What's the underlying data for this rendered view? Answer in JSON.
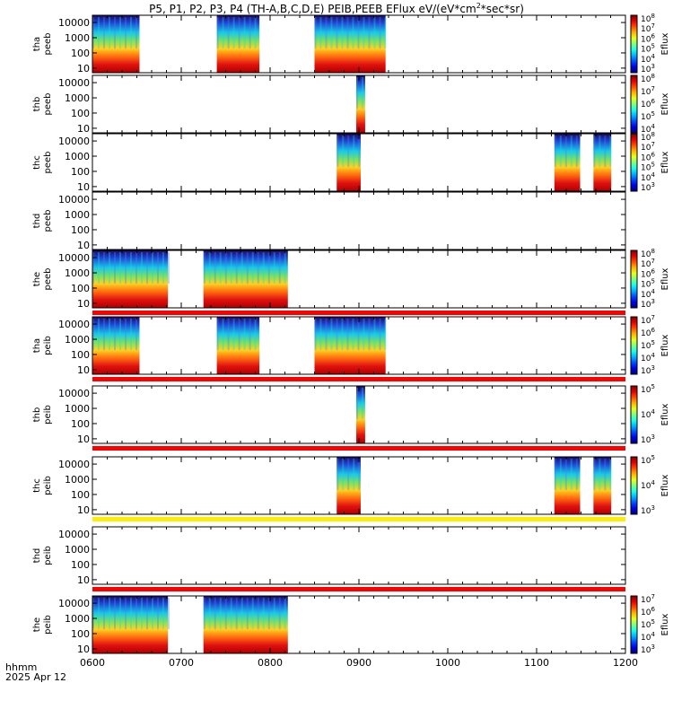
{
  "title_prefix": "P5, P1, P2, P3, P4 (TH-A,B,C,D,E) PEIB,PEEB EFlux eV/(eV*cm",
  "title_sup": "2",
  "title_suffix": "*sec*sr)",
  "footer": {
    "label": "hhmm",
    "date": "2025 Apr 12"
  },
  "chart_data": {
    "type": "heatmap",
    "x_ticks": [
      "0600",
      "0700",
      "0800",
      "0900",
      "1000",
      "1100",
      "1200"
    ],
    "x_range_hhmm": [
      "06:00",
      "12:00"
    ],
    "y_tick_labels": [
      "10",
      "100",
      "1000",
      "10000"
    ],
    "y_scale": "log",
    "colorbar_label": "Eflux",
    "panels": [
      {
        "ylabel1": "tha",
        "ylabel2": "peeb",
        "data_intervals": [
          [
            "06:00",
            "06:53"
          ],
          [
            "07:40",
            "07:88"
          ],
          [
            "08:50",
            "09:30"
          ]
        ],
        "colorbar_ticks": [
          "10^3",
          "10^4",
          "10^5",
          "10^6",
          "10^7",
          "10^8"
        ],
        "status_bar": null
      },
      {
        "ylabel1": "thb",
        "ylabel2": "peeb",
        "data_intervals": [
          [
            "08:97",
            "09:07"
          ]
        ],
        "colorbar_ticks": [
          "10^4",
          "10^5",
          "10^6",
          "10^7",
          "10^8"
        ],
        "status_bar": null
      },
      {
        "ylabel1": "thc",
        "ylabel2": "peeb",
        "data_intervals": [
          [
            "08:75",
            "09:02"
          ],
          [
            "11:20",
            "11:49"
          ],
          [
            "11:64",
            "11:84"
          ]
        ],
        "colorbar_ticks": [
          "10^3",
          "10^4",
          "10^5",
          "10^6",
          "10^7",
          "10^8"
        ],
        "status_bar": null
      },
      {
        "ylabel1": "thd",
        "ylabel2": "peeb",
        "data_intervals": [],
        "colorbar_ticks": [],
        "status_bar": null
      },
      {
        "ylabel1": "the",
        "ylabel2": "peeb",
        "data_intervals": [
          [
            "06:00",
            "06:85"
          ],
          [
            "07:25",
            "08:20"
          ]
        ],
        "colorbar_ticks": [
          "10^3",
          "10^4",
          "10^5",
          "10^6",
          "10^7",
          "10^8"
        ],
        "status_bar": "red"
      },
      {
        "ylabel1": "tha",
        "ylabel2": "peib",
        "data_intervals": [
          [
            "06:00",
            "06:53"
          ],
          [
            "07:40",
            "07:88"
          ],
          [
            "08:50",
            "09:30"
          ]
        ],
        "colorbar_ticks": [
          "10^3",
          "10^4",
          "10^5",
          "10^6",
          "10^7"
        ],
        "status_bar": "red"
      },
      {
        "ylabel1": "thb",
        "ylabel2": "peib",
        "data_intervals": [
          [
            "08:97",
            "09:07"
          ]
        ],
        "colorbar_ticks": [
          "10^3",
          "10^4",
          "10^5"
        ],
        "status_bar": "red"
      },
      {
        "ylabel1": "thc",
        "ylabel2": "peib",
        "data_intervals": [
          [
            "08:75",
            "09:02"
          ],
          [
            "11:20",
            "11:49"
          ],
          [
            "11:64",
            "11:84"
          ]
        ],
        "colorbar_ticks": [
          "10^3",
          "10^4",
          "10^5"
        ],
        "status_bar": "yellow"
      },
      {
        "ylabel1": "thd",
        "ylabel2": "peib",
        "data_intervals": [],
        "colorbar_ticks": [],
        "status_bar": "red"
      },
      {
        "ylabel1": "the",
        "ylabel2": "peib",
        "data_intervals": [
          [
            "06:00",
            "06:85"
          ],
          [
            "07:25",
            "08:20"
          ]
        ],
        "colorbar_ticks": [
          "10^3",
          "10^4",
          "10^5",
          "10^6",
          "10^7"
        ],
        "status_bar": null
      }
    ]
  }
}
